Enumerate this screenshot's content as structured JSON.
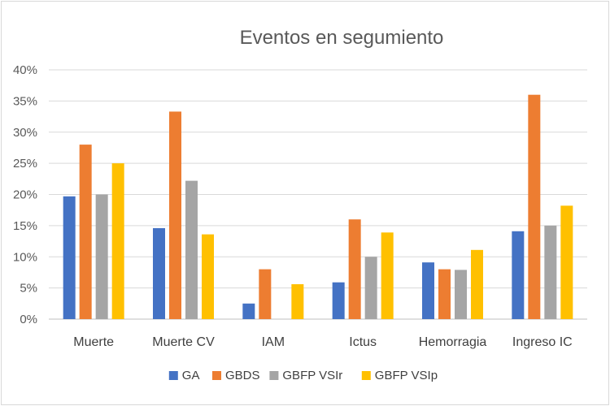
{
  "chart_data": {
    "type": "bar",
    "title": "Eventos en segumiento",
    "xlabel": "",
    "ylabel": "",
    "categories": [
      "Muerte",
      "Muerte CV",
      "IAM",
      "Ictus",
      "Hemorragia",
      "Ingreso IC"
    ],
    "series": [
      {
        "name": "GA",
        "color": "#4472C4",
        "values": [
          19.7,
          14.6,
          2.5,
          5.9,
          9.1,
          14.1
        ]
      },
      {
        "name": "GBDS",
        "color": "#ED7D31",
        "values": [
          28.0,
          33.3,
          8.0,
          16.0,
          8.0,
          36.0
        ]
      },
      {
        "name": "GBFP VSIr",
        "color": "#A5A5A5",
        "values": [
          20.0,
          22.2,
          0,
          10.0,
          7.9,
          15.0
        ]
      },
      {
        "name": "GBFP VSIp",
        "color": "#FFC000",
        "values": [
          25.0,
          13.6,
          5.6,
          13.9,
          11.1,
          18.2
        ]
      }
    ],
    "ylim": [
      0,
      40
    ],
    "yticks": [
      "0%",
      "5%",
      "10%",
      "15%",
      "20%",
      "25%",
      "30%",
      "35%",
      "40%"
    ],
    "grid": true,
    "legend_position": "bottom"
  }
}
